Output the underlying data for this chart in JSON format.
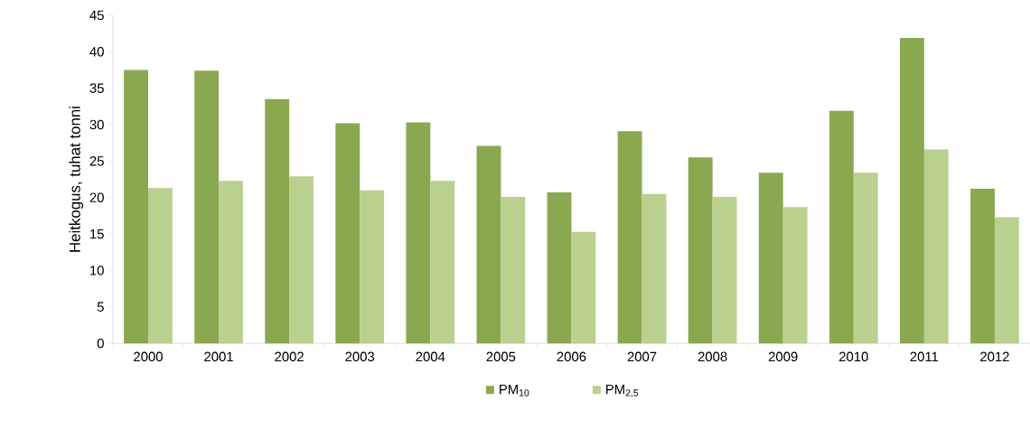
{
  "chart_data": {
    "type": "bar",
    "ylabel": "Heitkogus, tuhat tonni",
    "categories": [
      "2000",
      "2001",
      "2002",
      "2003",
      "2004",
      "2005",
      "2006",
      "2007",
      "2008",
      "2009",
      "2010",
      "2011",
      "2012"
    ],
    "series": [
      {
        "name": "PM$_{10}$",
        "color": "#8aa84f",
        "values": [
          37.5,
          37.4,
          33.5,
          30.2,
          30.3,
          27.1,
          20.7,
          29.1,
          25.5,
          23.4,
          31.9,
          41.9,
          21.2
        ]
      },
      {
        "name": "PM$_{2,5}$",
        "color": "#bad08f",
        "values": [
          21.3,
          22.3,
          22.9,
          21.0,
          22.3,
          20.1,
          15.3,
          20.5,
          20.1,
          18.7,
          23.4,
          26.6,
          17.3
        ]
      }
    ],
    "ylim": [
      0,
      45
    ],
    "yticks": [
      0,
      5,
      10,
      15,
      20,
      25,
      30,
      35,
      40,
      45
    ],
    "legend": "bottom"
  }
}
